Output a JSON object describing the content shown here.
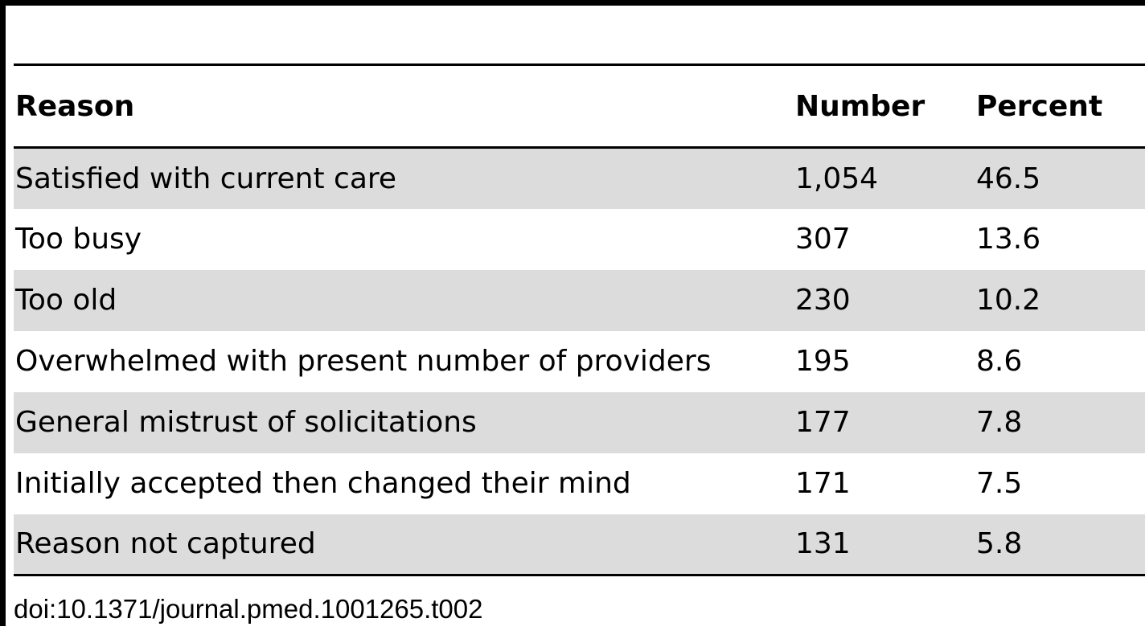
{
  "table": {
    "headers": {
      "reason": "Reason",
      "number": "Number",
      "percent": "Percent"
    },
    "rows": [
      {
        "reason": "Satisfied with current care",
        "number": "1,054",
        "percent": "46.5"
      },
      {
        "reason": "Too busy",
        "number": "307",
        "percent": "13.6"
      },
      {
        "reason": "Too old",
        "number": "230",
        "percent": "10.2"
      },
      {
        "reason": "Overwhelmed with present number of providers",
        "number": "195",
        "percent": "8.6"
      },
      {
        "reason": "General mistrust of solicitations",
        "number": "177",
        "percent": "7.8"
      },
      {
        "reason": "Initially accepted then changed their mind",
        "number": "171",
        "percent": "7.5"
      },
      {
        "reason": "Reason not captured",
        "number": "131",
        "percent": "5.8"
      }
    ]
  },
  "footer": {
    "doi": "doi:10.1371/journal.pmed.1001265.t002"
  },
  "colors": {
    "shaded_row": "#dcdcdc",
    "rule": "#000000"
  }
}
